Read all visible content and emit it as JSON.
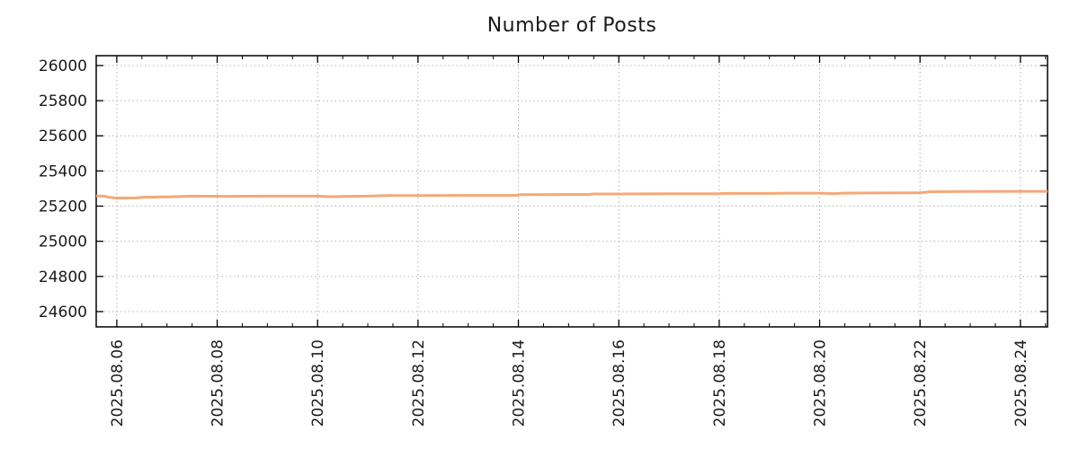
{
  "chart_data": {
    "type": "line",
    "title": "Number of Posts",
    "xlabel": "",
    "ylabel": "",
    "grid": "dotted, at major ticks",
    "legend": "none",
    "xlim_days_august_2025": [
      5.59,
      24.54
    ],
    "ylim": [
      24513,
      26056
    ],
    "yticks": [
      24600,
      24800,
      25000,
      25200,
      25400,
      25600,
      25800,
      26000
    ],
    "xticks": [
      {
        "day": 6,
        "label": "2025.08.06"
      },
      {
        "day": 8,
        "label": "2025.08.08"
      },
      {
        "day": 10,
        "label": "2025.08.10"
      },
      {
        "day": 12,
        "label": "2025.08.12"
      },
      {
        "day": 14,
        "label": "2025.08.14"
      },
      {
        "day": 16,
        "label": "2025.08.16"
      },
      {
        "day": 18,
        "label": "2025.08.18"
      },
      {
        "day": 20,
        "label": "2025.08.20"
      },
      {
        "day": 22,
        "label": "2025.08.22"
      },
      {
        "day": 24,
        "label": "2025.08.24"
      }
    ],
    "x_minor_tick_step_days": 0.5,
    "series": [
      {
        "name": "number-of-posts",
        "color": "#f5a878",
        "points": [
          [
            5.59,
            25258
          ],
          [
            5.75,
            25257
          ],
          [
            5.85,
            25250
          ],
          [
            6.0,
            25246
          ],
          [
            6.35,
            25246
          ],
          [
            6.55,
            25251
          ],
          [
            7.0,
            25253
          ],
          [
            7.55,
            25257
          ],
          [
            8.1,
            25256
          ],
          [
            9.0,
            25257
          ],
          [
            10.0,
            25257
          ],
          [
            10.25,
            25254
          ],
          [
            10.7,
            25256
          ],
          [
            11.0,
            25257
          ],
          [
            11.4,
            25260
          ],
          [
            12.0,
            25260
          ],
          [
            13.0,
            25261
          ],
          [
            13.95,
            25261
          ],
          [
            14.05,
            25265
          ],
          [
            15.0,
            25266
          ],
          [
            15.4,
            25266
          ],
          [
            15.5,
            25269
          ],
          [
            16.0,
            25269
          ],
          [
            17.0,
            25270
          ],
          [
            18.0,
            25270
          ],
          [
            18.1,
            25272
          ],
          [
            19.0,
            25272
          ],
          [
            19.4,
            25274
          ],
          [
            20.0,
            25274
          ],
          [
            20.3,
            25271
          ],
          [
            20.45,
            25274
          ],
          [
            21.0,
            25275
          ],
          [
            22.0,
            25276
          ],
          [
            22.2,
            25282
          ],
          [
            23.0,
            25283
          ],
          [
            24.0,
            25284
          ],
          [
            24.54,
            25284
          ]
        ]
      }
    ],
    "colors": {
      "line": "#f5a878",
      "axis": "#000000",
      "grid": "#b0b0b0",
      "text": "#1a1a1a",
      "background": "#ffffff"
    }
  }
}
